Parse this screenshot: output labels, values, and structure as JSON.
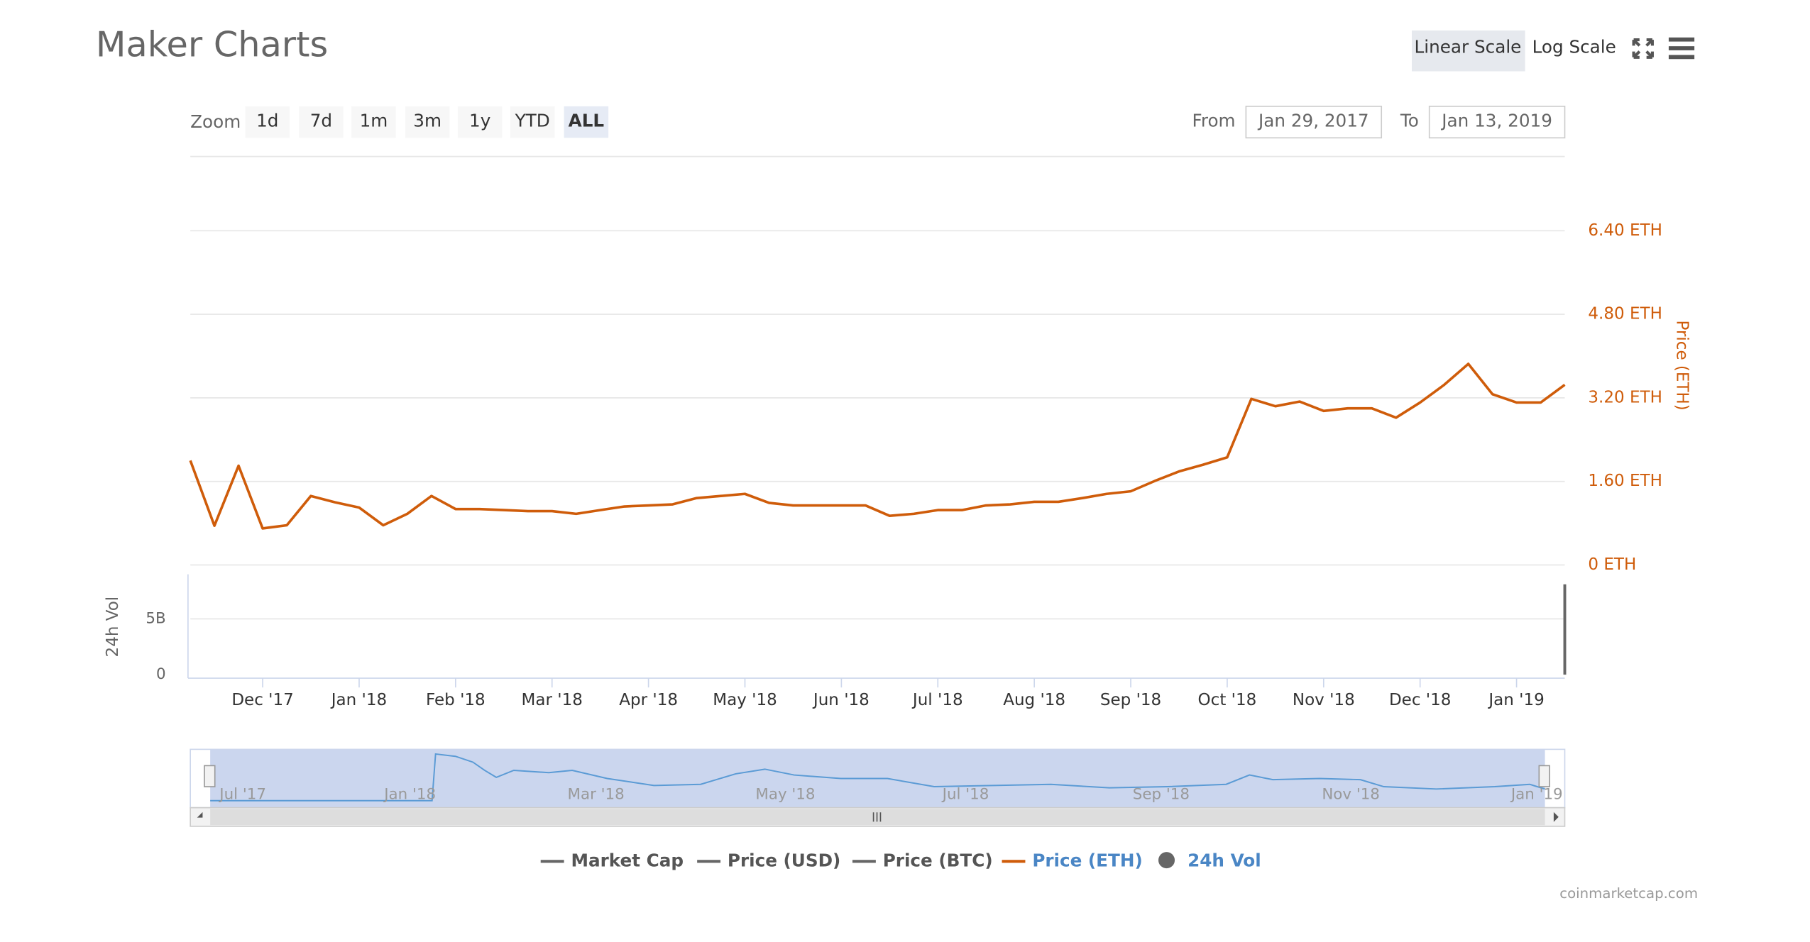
{
  "header": {
    "title": "Maker Charts",
    "scale_buttons": [
      "Linear Scale",
      "Log Scale"
    ],
    "active_scale": "Linear Scale"
  },
  "zoom": {
    "label": "Zoom",
    "buttons": [
      "1d",
      "7d",
      "1m",
      "3m",
      "1y",
      "YTD",
      "ALL"
    ],
    "active": "ALL"
  },
  "range": {
    "from_label": "From",
    "from": "Jan 29, 2017",
    "to_label": "To",
    "to": "Jan 13, 2019"
  },
  "chart_data": [
    {
      "type": "line",
      "y_axis_label": "Price (ETH)",
      "categories": [
        null,
        null,
        null,
        "Dec '17",
        null,
        null,
        null,
        "Jan '18",
        null,
        null,
        null,
        "Feb '18",
        null,
        null,
        null,
        "Mar '18",
        null,
        null,
        null,
        "Apr '18",
        null,
        null,
        null,
        "May '18",
        null,
        null,
        null,
        "Jun '18",
        null,
        null,
        null,
        "Jul '18",
        null,
        null,
        null,
        "Aug '18",
        null,
        null,
        null,
        "Sep '18",
        null,
        null,
        null,
        "Oct '18",
        null,
        null,
        null,
        "Nov '18",
        null,
        null,
        null,
        "Dec '18",
        null,
        null,
        null,
        "Jan '19",
        null,
        null
      ],
      "series": [
        {
          "name": "Market Cap",
          "color": "#666666",
          "visible": false
        },
        {
          "name": "Price (USD)",
          "color": "#666666",
          "visible": false
        },
        {
          "name": "Price (BTC)",
          "color": "#666666",
          "visible": false
        },
        {
          "name": "Price (ETH)",
          "color": "#cf5c0a",
          "visible": true,
          "values": [
            2.0,
            0.75,
            1.9,
            0.7,
            0.76,
            1.32,
            1.2,
            1.1,
            0.76,
            0.98,
            1.32,
            1.07,
            1.07,
            1.05,
            1.03,
            1.03,
            0.98,
            1.05,
            1.12,
            1.14,
            1.16,
            1.28,
            1.32,
            1.36,
            1.19,
            1.14,
            1.14,
            1.14,
            1.14,
            0.94,
            0.98,
            1.05,
            1.05,
            1.14,
            1.16,
            1.21,
            1.21,
            1.28,
            1.36,
            1.41,
            1.61,
            1.79,
            1.92,
            2.06,
            3.18,
            3.04,
            3.13,
            2.95,
            3.0,
            3.0,
            2.82,
            3.11,
            3.45,
            3.85,
            3.27,
            3.11,
            3.11,
            3.45
          ]
        }
      ],
      "ylim": [
        0,
        7.8
      ],
      "yticks": [
        {
          "value": 0,
          "label": "0 ETH"
        },
        {
          "value": 1.6,
          "label": "1.60 ETH"
        },
        {
          "value": 3.2,
          "label": "3.20 ETH"
        },
        {
          "value": 4.8,
          "label": "4.80 ETH"
        },
        {
          "value": 6.4,
          "label": "6.40 ETH"
        }
      ],
      "grid": true
    },
    {
      "type": "bar",
      "y_axis_label": "24h Vol",
      "series": [
        {
          "name": "24h Vol",
          "color": "#666666",
          "visible": true,
          "values": [
            null,
            null,
            null,
            null,
            null,
            null,
            null,
            null,
            null,
            null,
            null,
            null,
            null,
            null,
            null,
            null,
            null,
            null,
            null,
            null,
            null,
            null,
            null,
            null,
            null,
            null,
            null,
            null,
            null,
            null,
            null,
            null,
            null,
            null,
            null,
            null,
            null,
            null,
            null,
            null,
            null,
            null,
            null,
            null,
            null,
            null,
            null,
            null,
            null,
            null,
            null,
            null,
            null,
            null,
            null,
            null,
            null,
            8100000000
          ]
        }
      ],
      "ylim": [
        0,
        9000000000
      ],
      "yticks": [
        0,
        {
          "value": 5000000000,
          "label": "5B"
        }
      ],
      "grid": true
    }
  ],
  "navigator": {
    "labels": [
      "Jul '17",
      "Jan '18",
      "Mar '18",
      "May '18",
      "Jul '18",
      "Sep '18",
      "Nov '18",
      "Jan '19"
    ]
  },
  "footer": "coinmarketcap.com"
}
